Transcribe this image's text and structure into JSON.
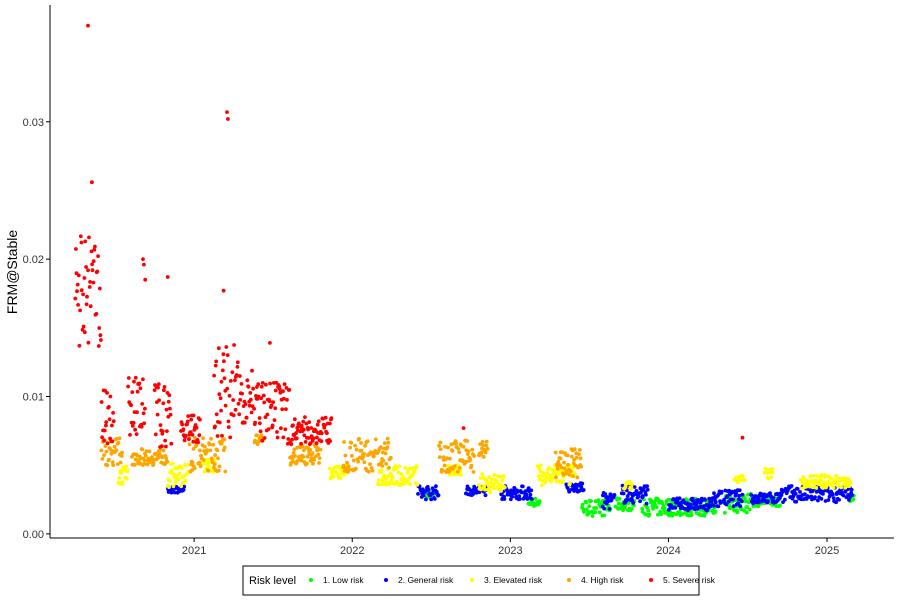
{
  "chart_data": {
    "type": "scatter",
    "title": "",
    "xlabel": "",
    "ylabel": "FRM@Stable",
    "x_ticks": [
      "2021",
      "2022",
      "2023",
      "2024",
      "2025"
    ],
    "y_ticks": [
      "0.00",
      "0.01",
      "0.02",
      "0.03"
    ],
    "xlim": [
      "2020-04-01",
      "2025-05-01"
    ],
    "ylim": [
      0.0,
      0.0385
    ],
    "grid": false,
    "legend": {
      "title": "Risk level",
      "placement": "bottom",
      "entries": [
        {
          "label": "1. Low risk",
          "color": "#00ff00"
        },
        {
          "label": "2. General risk",
          "color": "#0000ff"
        },
        {
          "label": "3. Elevated risk",
          "color": "#ffff00"
        },
        {
          "label": "4. High risk",
          "color": "#ffa500"
        },
        {
          "label": "5. Severe risk",
          "color": "#ff0000"
        }
      ]
    },
    "series": [
      {
        "name": "1. Low risk",
        "color": "#00ff00",
        "segments": [
          {
            "start": "2022-06-20",
            "end": "2022-07-10",
            "low": 0.0025,
            "high": 0.0032
          },
          {
            "start": "2023-02-10",
            "end": "2023-03-10",
            "low": 0.002,
            "high": 0.0026
          },
          {
            "start": "2023-06-15",
            "end": "2023-08-20",
            "low": 0.0013,
            "high": 0.0025
          },
          {
            "start": "2023-09-01",
            "end": "2023-10-15",
            "low": 0.0017,
            "high": 0.0026
          },
          {
            "start": "2023-11-01",
            "end": "2024-04-20",
            "low": 0.0013,
            "high": 0.0026
          },
          {
            "start": "2024-05-10",
            "end": "2024-07-10",
            "low": 0.0015,
            "high": 0.003
          },
          {
            "start": "2024-07-15",
            "end": "2024-09-15",
            "low": 0.002,
            "high": 0.0028
          },
          {
            "start": "2025-02-20",
            "end": "2025-03-05",
            "low": 0.0023,
            "high": 0.0028
          }
        ]
      },
      {
        "name": "2. General risk",
        "color": "#0000ff",
        "segments": [
          {
            "start": "2020-11-01",
            "end": "2020-12-10",
            "low": 0.003,
            "high": 0.0035
          },
          {
            "start": "2022-06-01",
            "end": "2022-07-20",
            "low": 0.0025,
            "high": 0.0035
          },
          {
            "start": "2022-09-20",
            "end": "2022-11-10",
            "low": 0.0028,
            "high": 0.0035
          },
          {
            "start": "2022-12-10",
            "end": "2023-02-20",
            "low": 0.0025,
            "high": 0.0035
          },
          {
            "start": "2023-05-10",
            "end": "2023-06-20",
            "low": 0.003,
            "high": 0.0037
          },
          {
            "start": "2023-08-01",
            "end": "2023-08-30",
            "low": 0.0018,
            "high": 0.003
          },
          {
            "start": "2023-09-15",
            "end": "2023-11-15",
            "low": 0.0022,
            "high": 0.0036
          },
          {
            "start": "2024-01-01",
            "end": "2024-04-15",
            "low": 0.0017,
            "high": 0.0026
          },
          {
            "start": "2024-04-15",
            "end": "2024-06-20",
            "low": 0.002,
            "high": 0.0032
          },
          {
            "start": "2024-07-10",
            "end": "2024-09-10",
            "low": 0.0022,
            "high": 0.003
          },
          {
            "start": "2024-09-10",
            "end": "2025-03-01",
            "low": 0.0023,
            "high": 0.0035
          }
        ]
      },
      {
        "name": "3. Elevated risk",
        "color": "#ffff00",
        "segments": [
          {
            "start": "2020-07-10",
            "end": "2020-08-01",
            "low": 0.0035,
            "high": 0.005
          },
          {
            "start": "2020-11-01",
            "end": "2020-12-20",
            "low": 0.0034,
            "high": 0.0052
          },
          {
            "start": "2021-01-20",
            "end": "2021-02-20",
            "low": 0.0045,
            "high": 0.0055
          },
          {
            "start": "2021-11-10",
            "end": "2021-12-20",
            "low": 0.004,
            "high": 0.005
          },
          {
            "start": "2022-03-01",
            "end": "2022-06-01",
            "low": 0.0035,
            "high": 0.005
          },
          {
            "start": "2022-08-10",
            "end": "2022-09-10",
            "low": 0.0042,
            "high": 0.005
          },
          {
            "start": "2022-10-20",
            "end": "2022-12-20",
            "low": 0.003,
            "high": 0.0045
          },
          {
            "start": "2023-03-05",
            "end": "2023-06-01",
            "low": 0.0035,
            "high": 0.005
          },
          {
            "start": "2023-09-20",
            "end": "2023-10-10",
            "low": 0.0032,
            "high": 0.0038
          },
          {
            "start": "2024-06-01",
            "end": "2024-06-25",
            "low": 0.0037,
            "high": 0.0043
          },
          {
            "start": "2024-08-10",
            "end": "2024-08-30",
            "low": 0.004,
            "high": 0.0048
          },
          {
            "start": "2024-11-01",
            "end": "2025-02-25",
            "low": 0.0033,
            "high": 0.0043
          }
        ]
      },
      {
        "name": "4. High risk",
        "color": "#ffa500",
        "segments": [
          {
            "start": "2020-06-01",
            "end": "2020-07-20",
            "low": 0.005,
            "high": 0.007
          },
          {
            "start": "2020-08-10",
            "end": "2020-11-01",
            "low": 0.005,
            "high": 0.0062
          },
          {
            "start": "2020-12-20",
            "end": "2021-03-15",
            "low": 0.0045,
            "high": 0.007
          },
          {
            "start": "2021-05-20",
            "end": "2021-06-10",
            "low": 0.0065,
            "high": 0.0072
          },
          {
            "start": "2021-08-10",
            "end": "2021-10-20",
            "low": 0.005,
            "high": 0.0065
          },
          {
            "start": "2021-12-10",
            "end": "2022-04-01",
            "low": 0.0045,
            "high": 0.007
          },
          {
            "start": "2022-07-20",
            "end": "2022-10-10",
            "low": 0.0045,
            "high": 0.0068
          },
          {
            "start": "2022-10-20",
            "end": "2022-11-10",
            "low": 0.0055,
            "high": 0.0068
          },
          {
            "start": "2023-04-15",
            "end": "2023-06-15",
            "low": 0.004,
            "high": 0.0062
          }
        ]
      },
      {
        "name": "5. Severe risk",
        "color": "#ff0000",
        "segments": [
          {
            "start": "2020-04-01",
            "end": "2020-06-01",
            "low": 0.0135,
            "high": 0.0217
          },
          {
            "start": "2020-06-01",
            "end": "2020-06-30",
            "low": 0.0065,
            "high": 0.0105
          },
          {
            "start": "2020-08-01",
            "end": "2020-09-10",
            "low": 0.007,
            "high": 0.0115
          },
          {
            "start": "2020-10-01",
            "end": "2020-11-10",
            "low": 0.0062,
            "high": 0.011
          },
          {
            "start": "2020-12-01",
            "end": "2021-01-15",
            "low": 0.0065,
            "high": 0.0087
          },
          {
            "start": "2021-02-15",
            "end": "2021-04-10",
            "low": 0.007,
            "high": 0.014
          },
          {
            "start": "2021-04-10",
            "end": "2021-05-20",
            "low": 0.008,
            "high": 0.0125
          },
          {
            "start": "2021-05-20",
            "end": "2021-08-10",
            "low": 0.0065,
            "high": 0.011
          },
          {
            "start": "2021-08-10",
            "end": "2021-11-15",
            "low": 0.0065,
            "high": 0.0085
          }
        ],
        "points": [
          {
            "x": "2020-05-01",
            "y": 0.037
          },
          {
            "x": "2020-05-10",
            "y": 0.0256
          },
          {
            "x": "2020-09-05",
            "y": 0.02
          },
          {
            "x": "2020-09-07",
            "y": 0.0196
          },
          {
            "x": "2020-09-10",
            "y": 0.0185
          },
          {
            "x": "2020-11-01",
            "y": 0.0187
          },
          {
            "x": "2021-03-18",
            "y": 0.0307
          },
          {
            "x": "2021-03-20",
            "y": 0.0302
          },
          {
            "x": "2021-03-10",
            "y": 0.0177
          },
          {
            "x": "2021-06-25",
            "y": 0.0139
          },
          {
            "x": "2022-09-15",
            "y": 0.0077
          },
          {
            "x": "2024-06-20",
            "y": 0.007
          }
        ]
      }
    ]
  }
}
